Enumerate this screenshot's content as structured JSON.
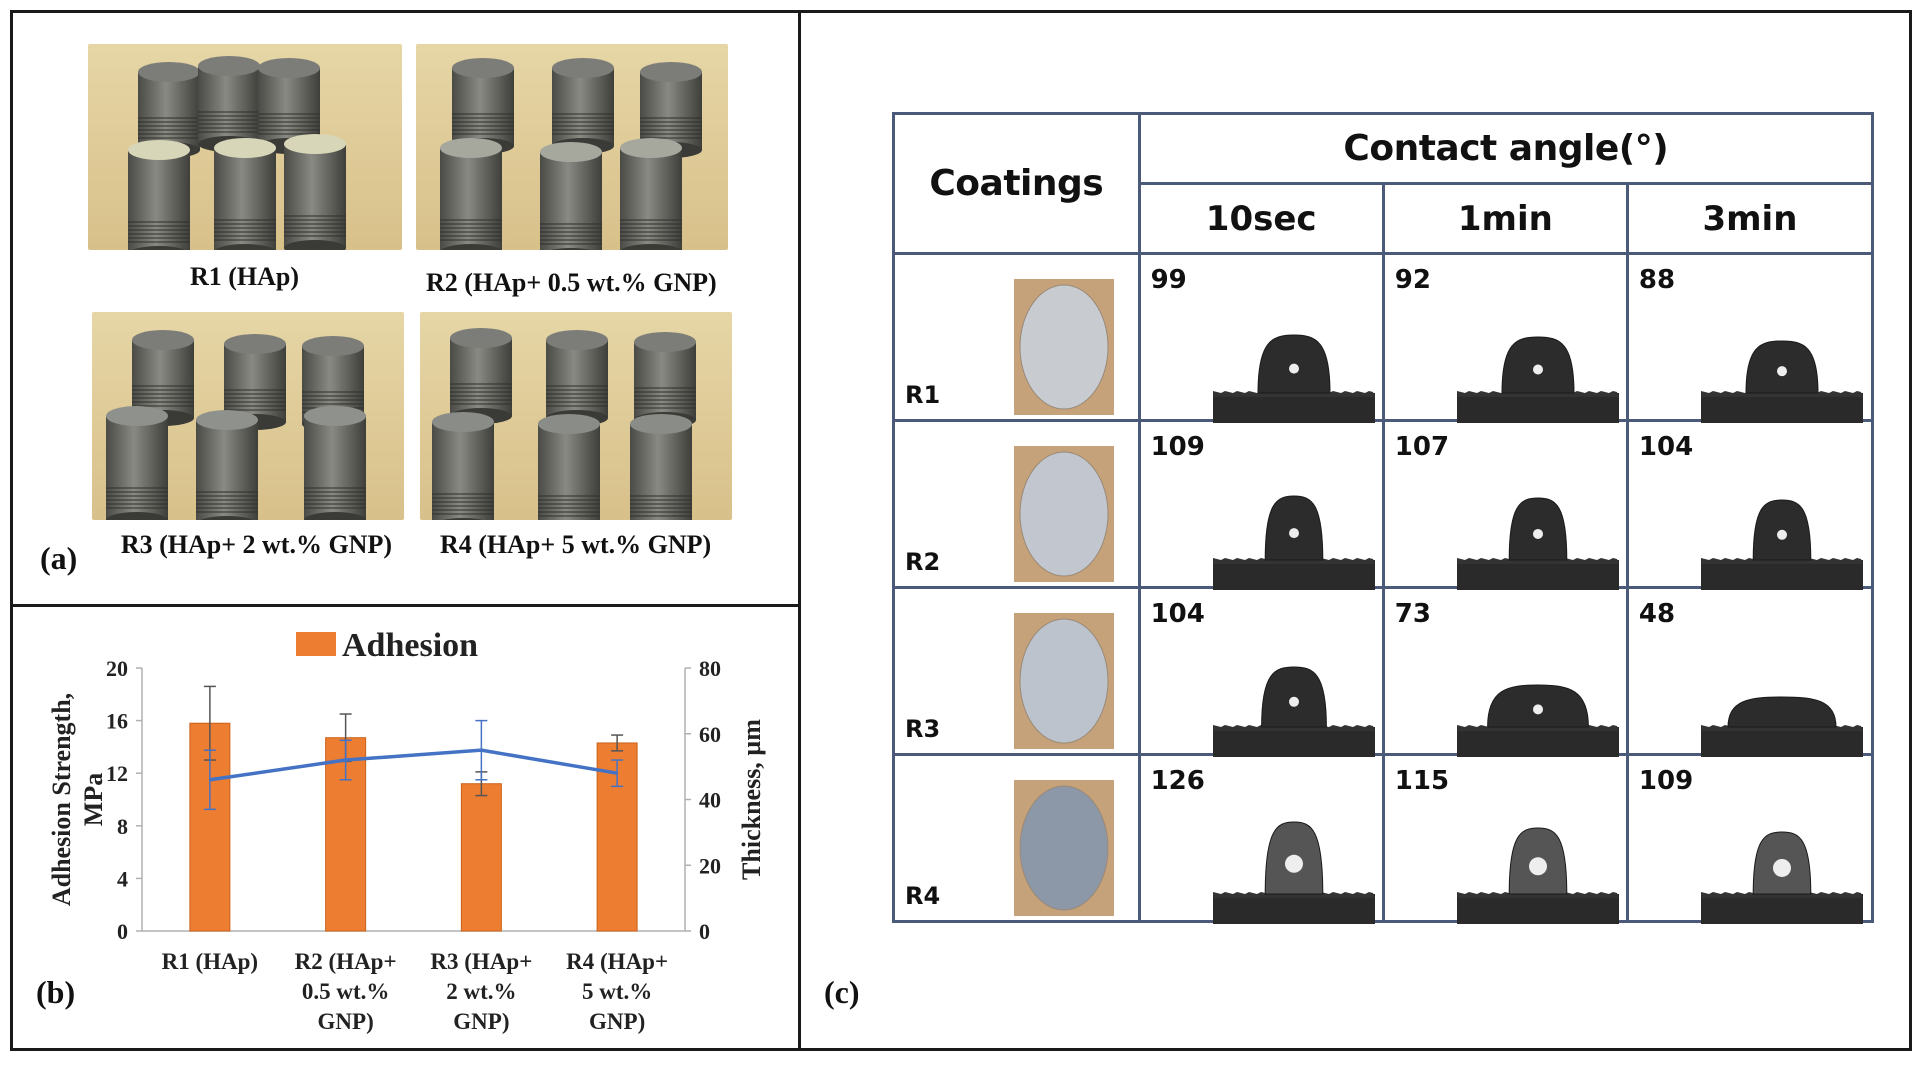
{
  "panel_a": {
    "label": "(a)",
    "captions": [
      "R1 (HAp)",
      "R2 (HAp+ 0.5 wt.% GNP)",
      "R3 (HAp+ 2 wt.% GNP)",
      "R4 (HAp+ 5 wt.% GNP)"
    ]
  },
  "panel_b": {
    "label": "(b)"
  },
  "panel_c": {
    "label": "(c)",
    "header_coatings": "Coatings",
    "header_contact": "Contact angle(°)",
    "time_headers": [
      "10sec",
      "1min",
      "3min"
    ],
    "rows": [
      {
        "label": "R1",
        "angles": [
          "99",
          "92",
          "88"
        ]
      },
      {
        "label": "R2",
        "angles": [
          "109",
          "107",
          "104"
        ]
      },
      {
        "label": "R3",
        "angles": [
          "104",
          "73",
          "48"
        ]
      },
      {
        "label": "R4",
        "angles": [
          "126",
          "115",
          "109"
        ]
      }
    ]
  },
  "chart_data": {
    "type": "bar",
    "title": "Adhesion",
    "legend": "Adhesion",
    "categories": [
      "R1 (HAp)",
      "R2 (HAp+ 0.5 wt.% GNP)",
      "R3 (HAp+ 2 wt.% GNP)",
      "R4 (HAp+ 5 wt.% GNP)"
    ],
    "category_lines": [
      [
        "R1 (HAp)"
      ],
      [
        "R2 (HAp+",
        "0.5 wt.%",
        "GNP)"
      ],
      [
        "R3 (HAp+",
        "2 wt.%",
        "GNP)"
      ],
      [
        "R4 (HAp+",
        "5 wt.%",
        "GNP)"
      ]
    ],
    "series": [
      {
        "name": "Adhesion",
        "type": "bar",
        "axis": "left",
        "color": "#ed7d31",
        "values": [
          15.8,
          14.7,
          11.2,
          14.3
        ],
        "errors": [
          2.8,
          1.8,
          0.9,
          0.6
        ]
      },
      {
        "name": "Thickness",
        "type": "line",
        "axis": "right",
        "color": "#4472c4",
        "values": [
          46,
          52,
          55,
          48
        ],
        "errors": [
          9,
          6,
          9,
          4
        ]
      }
    ],
    "ylabel_lines": [
      "Adhesion  Strength,",
      "MPa"
    ],
    "y2label": "Thickness,  µm",
    "ylim": [
      0,
      20
    ],
    "y2lim": [
      0,
      80
    ],
    "yticks": [
      "0",
      "4",
      "8",
      "12",
      "16",
      "20"
    ],
    "y2ticks": [
      "0",
      "20",
      "40",
      "60",
      "80"
    ]
  }
}
